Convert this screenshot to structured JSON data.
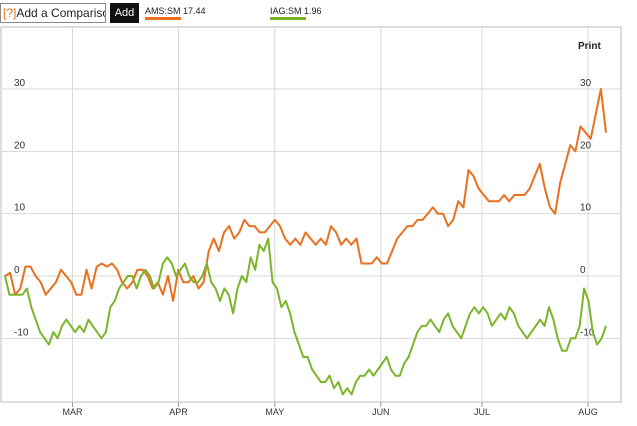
{
  "toolbar": {
    "compare_prefix": "[?]",
    "compare_text": "Add a Comparison",
    "add_label": "Add",
    "legend": [
      {
        "label": "AMS:SM 17.44",
        "color": "#e8701e"
      },
      {
        "label": "IAG:SM 1.96",
        "color": "#7cb52a"
      }
    ],
    "print_label": "Print"
  },
  "chart_data": {
    "type": "line",
    "ylim": [
      -20,
      35
    ],
    "yticks": [
      30,
      20,
      10,
      0,
      -10
    ],
    "xlim": [
      0,
      120
    ],
    "xticks": [
      {
        "label": "MAR",
        "x": 14
      },
      {
        "label": "APR",
        "x": 36
      },
      {
        "label": "MAY",
        "x": 56
      },
      {
        "label": "JUN",
        "x": 78
      },
      {
        "label": "JUL",
        "x": 99
      },
      {
        "label": "AUG",
        "x": 121
      }
    ],
    "grid": true,
    "series": [
      {
        "name": "AMS:SM",
        "color": "#e8701e",
        "values": [
          0,
          0.5,
          -3,
          -2,
          1.5,
          1.5,
          0,
          -1,
          -3,
          -2,
          -1,
          1,
          0,
          -1,
          -3,
          -3,
          1,
          -2,
          1.5,
          2,
          1.5,
          2,
          1,
          -1,
          -2,
          -1,
          1,
          1,
          0,
          -2,
          -1,
          -3,
          0,
          -4,
          1,
          -1,
          -1,
          0,
          -2,
          -1,
          4,
          6,
          4,
          7,
          8,
          6,
          7,
          9,
          8,
          8,
          7,
          7,
          8,
          9,
          8,
          6,
          5,
          6,
          5,
          7,
          6,
          5,
          6,
          5,
          8,
          7,
          5,
          6,
          5,
          6,
          2,
          2,
          2,
          3,
          2,
          2,
          4,
          6,
          7,
          8,
          8,
          9,
          9,
          10,
          11,
          10,
          10,
          8,
          9,
          12,
          11,
          17,
          16,
          14,
          13,
          12,
          12,
          12,
          13,
          12,
          13,
          13,
          13,
          14,
          16,
          18,
          14,
          11,
          10,
          15,
          18,
          21,
          20,
          24,
          23,
          22,
          26,
          30,
          23
        ]
      },
      {
        "name": "IAG:SM",
        "color": "#7cb52a",
        "values": [
          0,
          -3,
          -3,
          -3,
          -3,
          -2,
          -5,
          -7,
          -9,
          -10,
          -11,
          -9,
          -10,
          -8,
          -7,
          -8,
          -9,
          -8,
          -9,
          -7,
          -8,
          -9,
          -10,
          -9,
          -5,
          -4,
          -2,
          -1,
          0,
          0,
          -2,
          0,
          1,
          0,
          -2,
          -1,
          2,
          3,
          2,
          0,
          1,
          2,
          0,
          -1,
          -1,
          0,
          2,
          -1,
          -2,
          -4,
          -2,
          -3,
          -6,
          -2,
          0,
          -1,
          3,
          1,
          5,
          4,
          6,
          -1,
          -2,
          -5,
          -4,
          -6,
          -9,
          -11,
          -13,
          -13,
          -15,
          -16,
          -17,
          -17,
          -16,
          -18,
          -17,
          -19,
          -18,
          -19,
          -17,
          -16,
          -16,
          -15,
          -16,
          -15,
          -14,
          -13,
          -15,
          -16,
          -16,
          -14,
          -13,
          -11,
          -9,
          -8,
          -8,
          -7,
          -8,
          -9,
          -7,
          -6,
          -8,
          -9,
          -10,
          -8,
          -6,
          -5,
          -6,
          -5,
          -6,
          -8,
          -7,
          -6,
          -7,
          -5,
          -6,
          -8,
          -9,
          -10,
          -9,
          -8,
          -7,
          -8,
          -5,
          -7,
          -10,
          -12,
          -12,
          -10,
          -10,
          -8,
          -2,
          -4,
          -9,
          -11,
          -10,
          -8
        ]
      }
    ]
  }
}
